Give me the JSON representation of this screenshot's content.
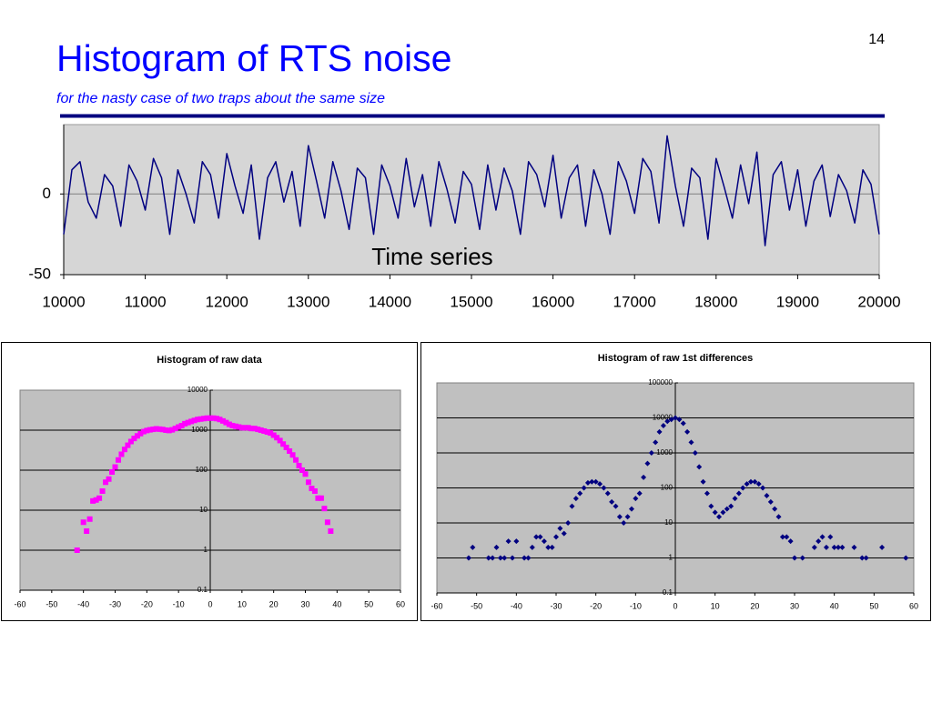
{
  "slide": {
    "title": "Histogram of RTS noise",
    "subtitle": "for the nasty case of two traps about the same size",
    "page_number": "14"
  },
  "chart_data": [
    {
      "type": "line",
      "annotation": "Time series",
      "color": "#000080",
      "xlim": [
        10000,
        20000
      ],
      "ylim": [
        -50,
        43
      ],
      "xticks": [
        10000,
        11000,
        12000,
        13000,
        14000,
        15000,
        16000,
        17000,
        18000,
        19000,
        20000
      ],
      "yticks": [
        -50,
        0
      ],
      "x": [
        10000,
        10100,
        10200,
        10300,
        10400,
        10500,
        10600,
        10700,
        10800,
        10900,
        11000,
        11100,
        11200,
        11300,
        11400,
        11500,
        11600,
        11700,
        11800,
        11900,
        12000,
        12100,
        12200,
        12300,
        12400,
        12500,
        12600,
        12700,
        12800,
        12900,
        13000,
        13100,
        13200,
        13300,
        13400,
        13500,
        13600,
        13700,
        13800,
        13900,
        14000,
        14100,
        14200,
        14300,
        14400,
        14500,
        14600,
        14700,
        14800,
        14900,
        15000,
        15100,
        15200,
        15300,
        15400,
        15500,
        15600,
        15700,
        15800,
        15900,
        16000,
        16100,
        16200,
        16300,
        16400,
        16500,
        16600,
        16700,
        16800,
        16900,
        17000,
        17100,
        17200,
        17300,
        17400,
        17500,
        17600,
        17700,
        17800,
        17900,
        18000,
        18100,
        18200,
        18300,
        18400,
        18500,
        18600,
        18700,
        18800,
        18900,
        19000,
        19100,
        19200,
        19300,
        19400,
        19500,
        19600,
        19700,
        19800,
        19900,
        20000
      ],
      "values": [
        -25,
        15,
        20,
        -5,
        -15,
        12,
        5,
        -20,
        18,
        8,
        -10,
        22,
        10,
        -25,
        15,
        0,
        -18,
        20,
        12,
        -15,
        25,
        5,
        -12,
        18,
        -28,
        10,
        20,
        -5,
        14,
        -20,
        30,
        8,
        -15,
        20,
        2,
        -22,
        16,
        10,
        -25,
        18,
        5,
        -15,
        22,
        -8,
        12,
        -20,
        20,
        3,
        -18,
        14,
        6,
        -22,
        18,
        -10,
        16,
        2,
        -25,
        20,
        12,
        -8,
        24,
        -15,
        10,
        18,
        -20,
        15,
        0,
        -25,
        20,
        8,
        -12,
        22,
        14,
        -18,
        36,
        5,
        -20,
        16,
        10,
        -28,
        22,
        4,
        -15,
        18,
        -6,
        26,
        -32,
        12,
        20,
        -10,
        15,
        -20,
        8,
        18,
        -14,
        12,
        2,
        -18,
        15,
        6,
        -25
      ]
    },
    {
      "type": "scatter",
      "title": "Histogram of raw data",
      "color": "#ff00ff",
      "marker": "square",
      "log_y": true,
      "grid": true,
      "xlim": [
        -60,
        60
      ],
      "ylim": [
        0.1,
        10000
      ],
      "xticks": [
        -60,
        -50,
        -40,
        -30,
        -20,
        -10,
        0,
        10,
        20,
        30,
        40,
        50,
        60
      ],
      "yticks": [
        0.1,
        1,
        10,
        100,
        1000,
        10000
      ],
      "x": [
        -42,
        -40,
        -39,
        -38,
        -37,
        -36,
        -35,
        -34,
        -33,
        -32,
        -31,
        -30,
        -29,
        -28,
        -27,
        -26,
        -25,
        -24,
        -23,
        -22,
        -21,
        -20,
        -19,
        -18,
        -17,
        -16,
        -15,
        -14,
        -13,
        -12,
        -11,
        -10,
        -9,
        -8,
        -7,
        -6,
        -5,
        -4,
        -3,
        -2,
        -1,
        0,
        1,
        2,
        3,
        4,
        5,
        6,
        7,
        8,
        9,
        10,
        11,
        12,
        13,
        14,
        15,
        16,
        17,
        18,
        19,
        20,
        21,
        22,
        23,
        24,
        25,
        26,
        27,
        28,
        29,
        30,
        31,
        32,
        33,
        34,
        35,
        36,
        37,
        38
      ],
      "values": [
        1,
        5,
        3,
        6,
        17,
        18,
        20,
        30,
        50,
        60,
        90,
        120,
        180,
        250,
        330,
        420,
        520,
        620,
        720,
        820,
        920,
        980,
        1020,
        1050,
        1080,
        1060,
        1040,
        1000,
        980,
        1020,
        1100,
        1200,
        1300,
        1450,
        1550,
        1650,
        1750,
        1850,
        1900,
        1950,
        2000,
        2000,
        2000,
        1950,
        1850,
        1700,
        1550,
        1400,
        1300,
        1250,
        1200,
        1150,
        1150,
        1150,
        1100,
        1100,
        1050,
        1000,
        950,
        900,
        850,
        750,
        650,
        550,
        450,
        370,
        300,
        240,
        180,
        130,
        100,
        80,
        50,
        35,
        30,
        20,
        20,
        11,
        5,
        3
      ]
    },
    {
      "type": "scatter",
      "title": "Histogram of raw 1st differences",
      "color": "#000080",
      "marker": "diamond",
      "log_y": true,
      "grid": true,
      "xlim": [
        -60,
        60
      ],
      "ylim": [
        0.1,
        100000
      ],
      "xticks": [
        -60,
        -50,
        -40,
        -30,
        -20,
        -10,
        0,
        10,
        20,
        30,
        40,
        50,
        60
      ],
      "yticks": [
        0.1,
        1,
        10,
        100,
        1000,
        10000,
        100000
      ],
      "x": [
        -52,
        -51,
        -47,
        -46,
        -45,
        -44,
        -43,
        -42,
        -41,
        -40,
        -38,
        -37,
        -36,
        -35,
        -34,
        -33,
        -32,
        -31,
        -30,
        -29,
        -28,
        -27,
        -26,
        -25,
        -24,
        -23,
        -22,
        -21,
        -20,
        -19,
        -18,
        -17,
        -16,
        -15,
        -14,
        -13,
        -12,
        -11,
        -10,
        -9,
        -8,
        -7,
        -6,
        -5,
        -4,
        -3,
        -2,
        -1,
        0,
        1,
        2,
        3,
        4,
        5,
        6,
        7,
        8,
        9,
        10,
        11,
        12,
        13,
        14,
        15,
        16,
        17,
        18,
        19,
        20,
        21,
        22,
        23,
        24,
        25,
        26,
        27,
        28,
        29,
        30,
        32,
        35,
        36,
        37,
        38,
        39,
        40,
        41,
        42,
        45,
        47,
        48,
        52,
        58
      ],
      "values": [
        1,
        2,
        1,
        1,
        2,
        1,
        1,
        3,
        1,
        3,
        1,
        1,
        2,
        4,
        4,
        3,
        2,
        2,
        4,
        7,
        5,
        10,
        30,
        50,
        70,
        100,
        140,
        150,
        150,
        130,
        100,
        70,
        40,
        30,
        15,
        10,
        15,
        25,
        50,
        70,
        200,
        500,
        1000,
        2000,
        4000,
        6000,
        8000,
        9000,
        10000,
        9000,
        7000,
        4000,
        2000,
        1000,
        400,
        150,
        70,
        30,
        20,
        15,
        20,
        25,
        30,
        50,
        70,
        100,
        130,
        150,
        150,
        130,
        100,
        60,
        40,
        25,
        15,
        4,
        4,
        3,
        1,
        1,
        2,
        3,
        4,
        2,
        4,
        2,
        2,
        2,
        2,
        1,
        1,
        2,
        1
      ]
    }
  ]
}
